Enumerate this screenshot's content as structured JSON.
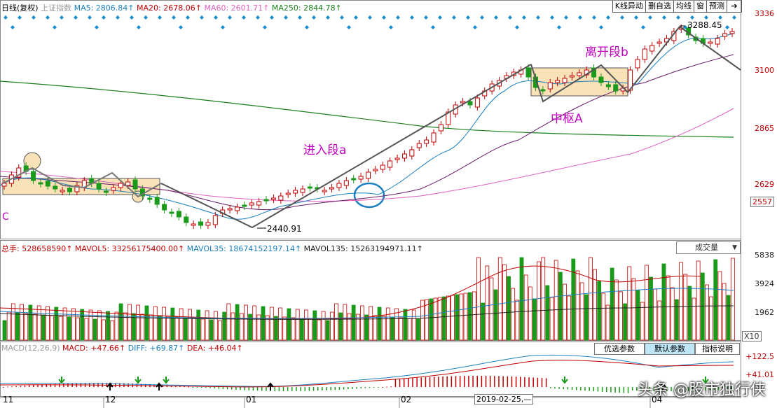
{
  "price_panel": {
    "title": "日线(复权)",
    "index_name": "上证指数",
    "ma": [
      {
        "label": "MA5: 2806.84↑",
        "color": "#1a7fc0"
      },
      {
        "label": "MA20: 2678.06↑",
        "color": "#c00000"
      },
      {
        "label": "MA60: 2601.71↑",
        "color": "#e060c0"
      },
      {
        "label": "MA250: 2844.78↑",
        "color": "#1a7f1a"
      }
    ],
    "y_labels": [
      "3336",
      "3100",
      "2865",
      "2629",
      "2557"
    ],
    "high_label": "3288.45",
    "low_label": "2440.91",
    "letter_c": "C",
    "annotations": {
      "entry": "进入段a",
      "center": "中枢A",
      "exit": "离开段b"
    }
  },
  "toolbar": {
    "buttons": [
      "K线异动",
      "删自选",
      "均线",
      "窗",
      "预测"
    ],
    "arrow": "➔"
  },
  "volume_panel": {
    "title": "总手: 528658590↑",
    "mavol": [
      {
        "label": "MAVOL5: 33256175400.00↑",
        "color": "#c00000"
      },
      {
        "label": "MAVOL35: 18674152197.14↑",
        "color": "#1a7fc0"
      },
      {
        "label": "MAVOL135: 15263194971.11↑",
        "color": "#222"
      }
    ],
    "dropdown": "成交量",
    "y_labels": [
      "5838",
      "3924",
      "1962"
    ],
    "unit": "X10"
  },
  "macd_panel": {
    "name": "MACD(12,26,9)",
    "values": [
      {
        "label": "MACD: +47.66↑",
        "color": "#c00000"
      },
      {
        "label": "DIFF: +69.87↑",
        "color": "#1a7fc0"
      },
      {
        "label": "DEA: +46.04↑",
        "color": "#c00000"
      }
    ],
    "buttons": [
      "优选参数",
      "默认参数",
      "指标说明"
    ],
    "y_labels": [
      "+122.5",
      "+41.01"
    ]
  },
  "x_axis": {
    "labels": [
      "11",
      "12",
      "01",
      "02",
      "2019-02-25,—",
      "04"
    ]
  },
  "watermark": "头条 @股市独行侠",
  "colors": {
    "up": "#c00000",
    "down": "#1a9a1a",
    "annotation": "#c000c0",
    "box": "#fae2b8"
  }
}
